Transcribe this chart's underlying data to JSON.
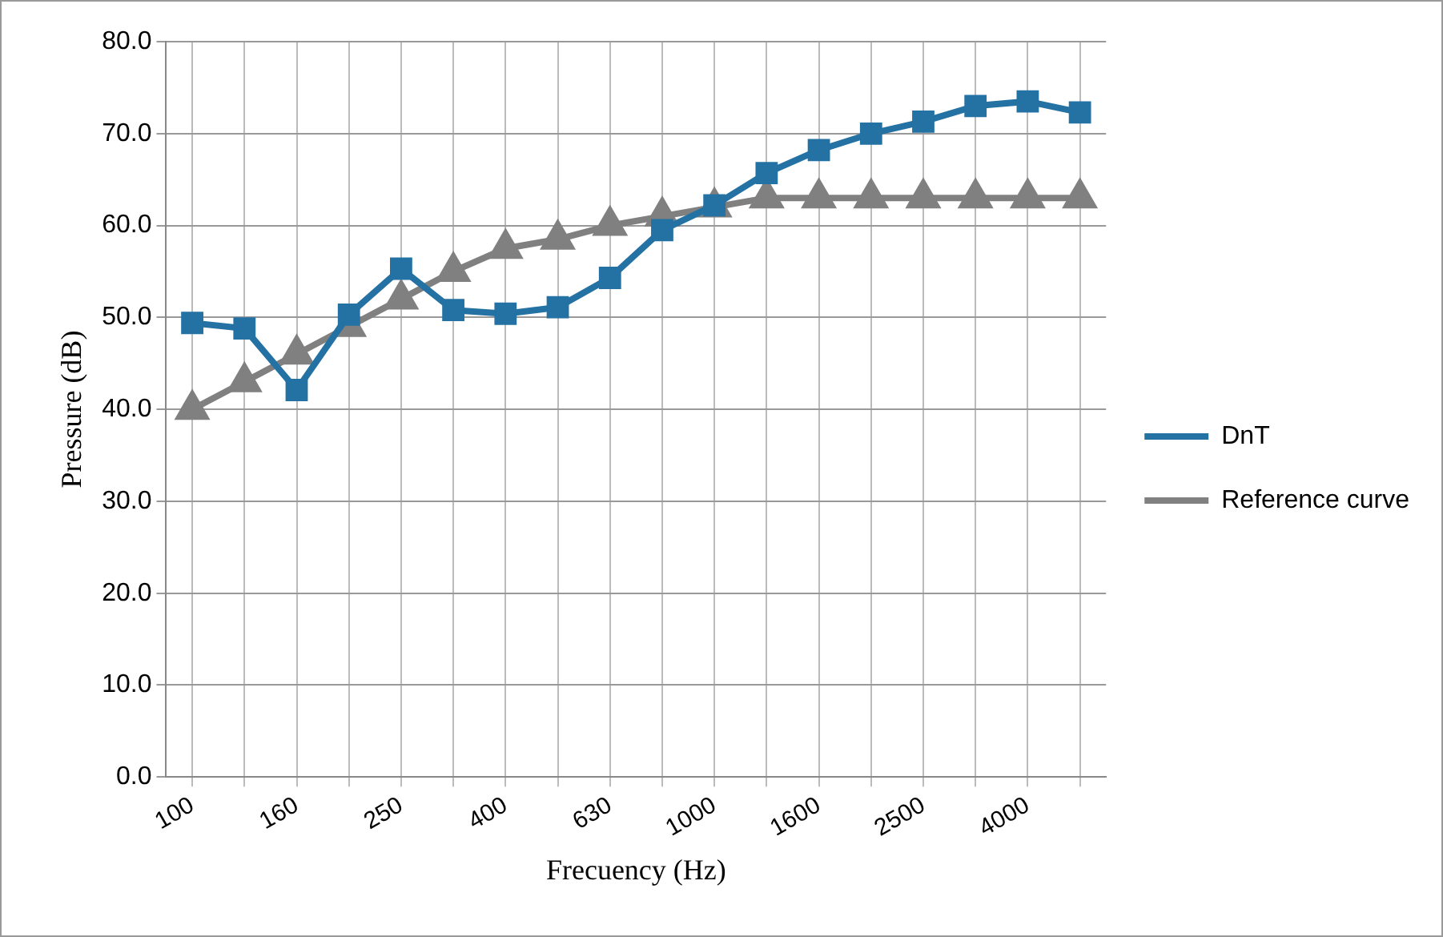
{
  "chart_data": {
    "type": "line",
    "xlabel": "Frecuency (Hz)",
    "ylabel": "Pressure (dB)",
    "categories": [
      "100",
      null,
      "160",
      null,
      "250",
      null,
      "400",
      null,
      "630",
      null,
      "1000",
      null,
      "1600",
      null,
      "2500",
      null,
      "4000",
      null
    ],
    "series": [
      {
        "name": "DnT",
        "color": "#2471a3",
        "marker": "square",
        "values": [
          49.4,
          48.8,
          42.1,
          50.3,
          55.3,
          50.8,
          50.4,
          51.1,
          54.3,
          59.5,
          62.2,
          65.7,
          68.2,
          70.0,
          71.3,
          73.0,
          73.5,
          72.3
        ]
      },
      {
        "name": "Reference curve",
        "color": "#808080",
        "marker": "triangle",
        "values": [
          40,
          43,
          46,
          49,
          52,
          55,
          57.5,
          58.5,
          60,
          61,
          62,
          63,
          63,
          63,
          63,
          63,
          63,
          63
        ]
      }
    ],
    "ylim": [
      0,
      80
    ],
    "yticks": [
      {
        "value": 0,
        "label": "0.0"
      },
      {
        "value": 10,
        "label": "10.0"
      },
      {
        "value": 20,
        "label": "20.0"
      },
      {
        "value": 30,
        "label": "30.0"
      },
      {
        "value": 40,
        "label": "40.0"
      },
      {
        "value": 50,
        "label": "50.0"
      },
      {
        "value": 60,
        "label": "60.0"
      },
      {
        "value": 70,
        "label": "70.0"
      },
      {
        "value": 80,
        "label": "80.0"
      }
    ],
    "grid": true,
    "legend": "right",
    "line_style": "solid"
  }
}
